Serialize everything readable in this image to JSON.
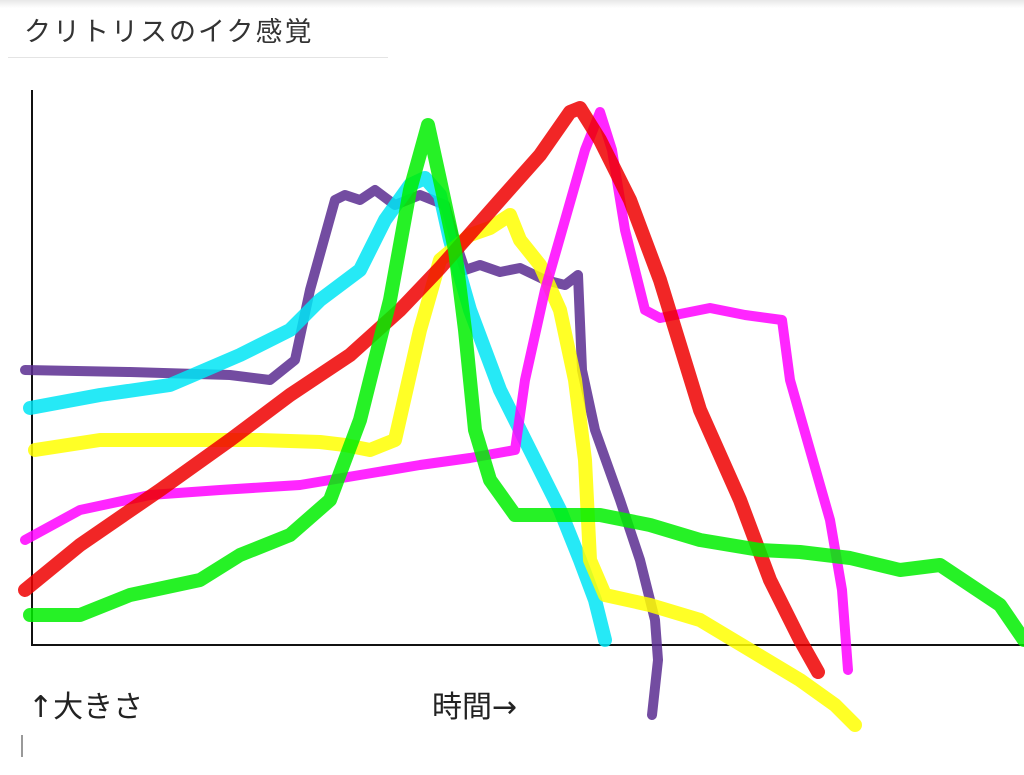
{
  "header": {
    "title": "クリトリスのイク感覚"
  },
  "axes": {
    "y_label": "↑大きさ",
    "x_label": "時間→"
  }
}
